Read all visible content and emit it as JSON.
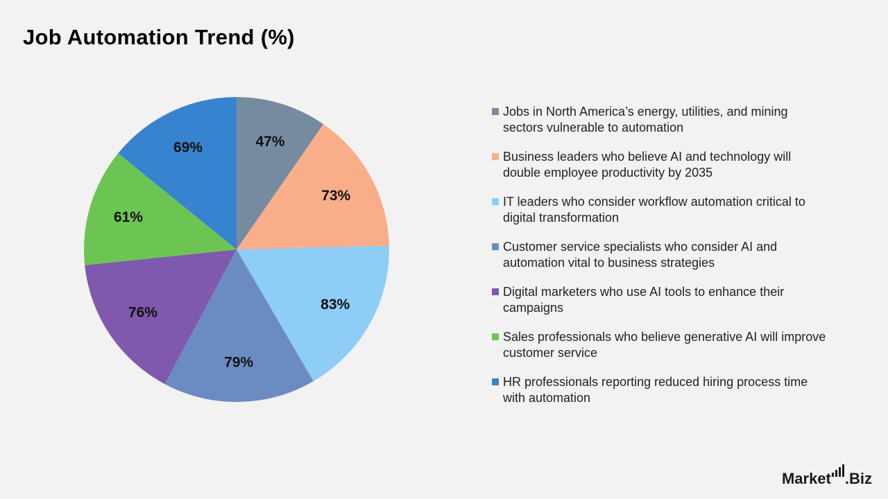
{
  "chart_data": {
    "type": "pie",
    "title": "Job Automation Trend (%)",
    "legend_position": "right",
    "slices": [
      {
        "label": "Jobs in North America’s energy, utilities, and mining sectors vulnerable to automation",
        "value": 47,
        "value_label": "47%",
        "color": "#768ba0"
      },
      {
        "label": "Business leaders who believe AI and technology will double employee productivity by 2035",
        "value": 73,
        "value_label": "73%",
        "color": "#f9ae89"
      },
      {
        "label": "IT leaders who consider workflow automation critical to digital transformation",
        "value": 83,
        "value_label": "83%",
        "color": "#8ecdf5"
      },
      {
        "label": "Customer service specialists who consider AI and automation vital to business strategies",
        "value": 79,
        "value_label": "79%",
        "color": "#6b8cc3"
      },
      {
        "label": "Digital marketers who use AI tools to enhance their campaigns",
        "value": 76,
        "value_label": "76%",
        "color": "#7f59ad"
      },
      {
        "label": "Sales professionals who believe generative AI will improve customer service",
        "value": 61,
        "value_label": "61%",
        "color": "#6cc552"
      },
      {
        "label": "HR professionals reporting reduced hiring process time with automation",
        "value": 69,
        "value_label": "69%",
        "color": "#3783d0"
      }
    ]
  },
  "logo": {
    "prefix": "Market",
    "suffix": ".Biz"
  }
}
